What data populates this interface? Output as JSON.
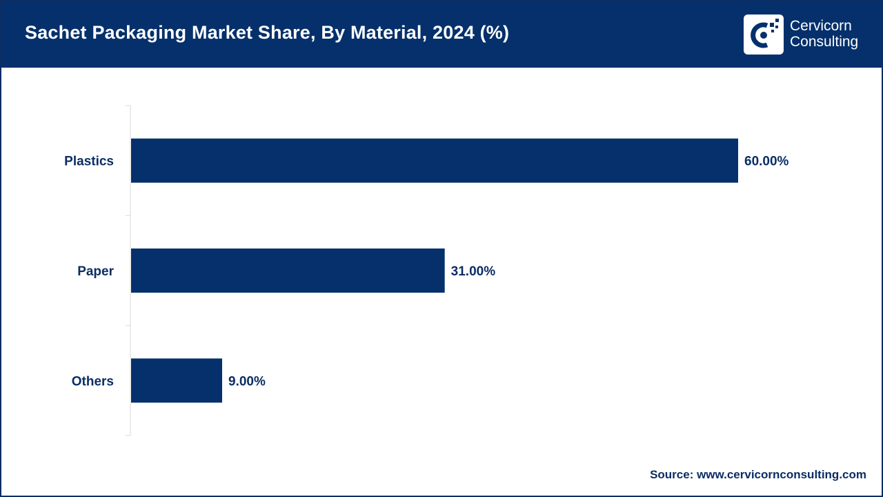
{
  "header": {
    "title": "Sachet Packaging Market Share, By Material, 2024 (%)",
    "logo_icon": "cervicorn-logo-icon",
    "logo_line1": "Cervicorn",
    "logo_line2": "Consulting"
  },
  "colors": {
    "header_bg": "#05306b",
    "bar": "#05306b",
    "text": "#0b2d63",
    "axis": "#d9d9d9"
  },
  "chart_data": {
    "type": "bar",
    "orientation": "horizontal",
    "title": "Sachet Packaging Market Share, By Material, 2024 (%)",
    "categories": [
      "Plastics",
      "Paper",
      "Others"
    ],
    "values": [
      60.0,
      31.0,
      9.0
    ],
    "value_labels": [
      "60.00%",
      "31.00%",
      "9.00%"
    ],
    "xlabel": "",
    "ylabel": "",
    "xlim": [
      0,
      60
    ],
    "grid": false,
    "legend": "none"
  },
  "footer": {
    "source": "Source: www.cervicornconsulting.com"
  }
}
